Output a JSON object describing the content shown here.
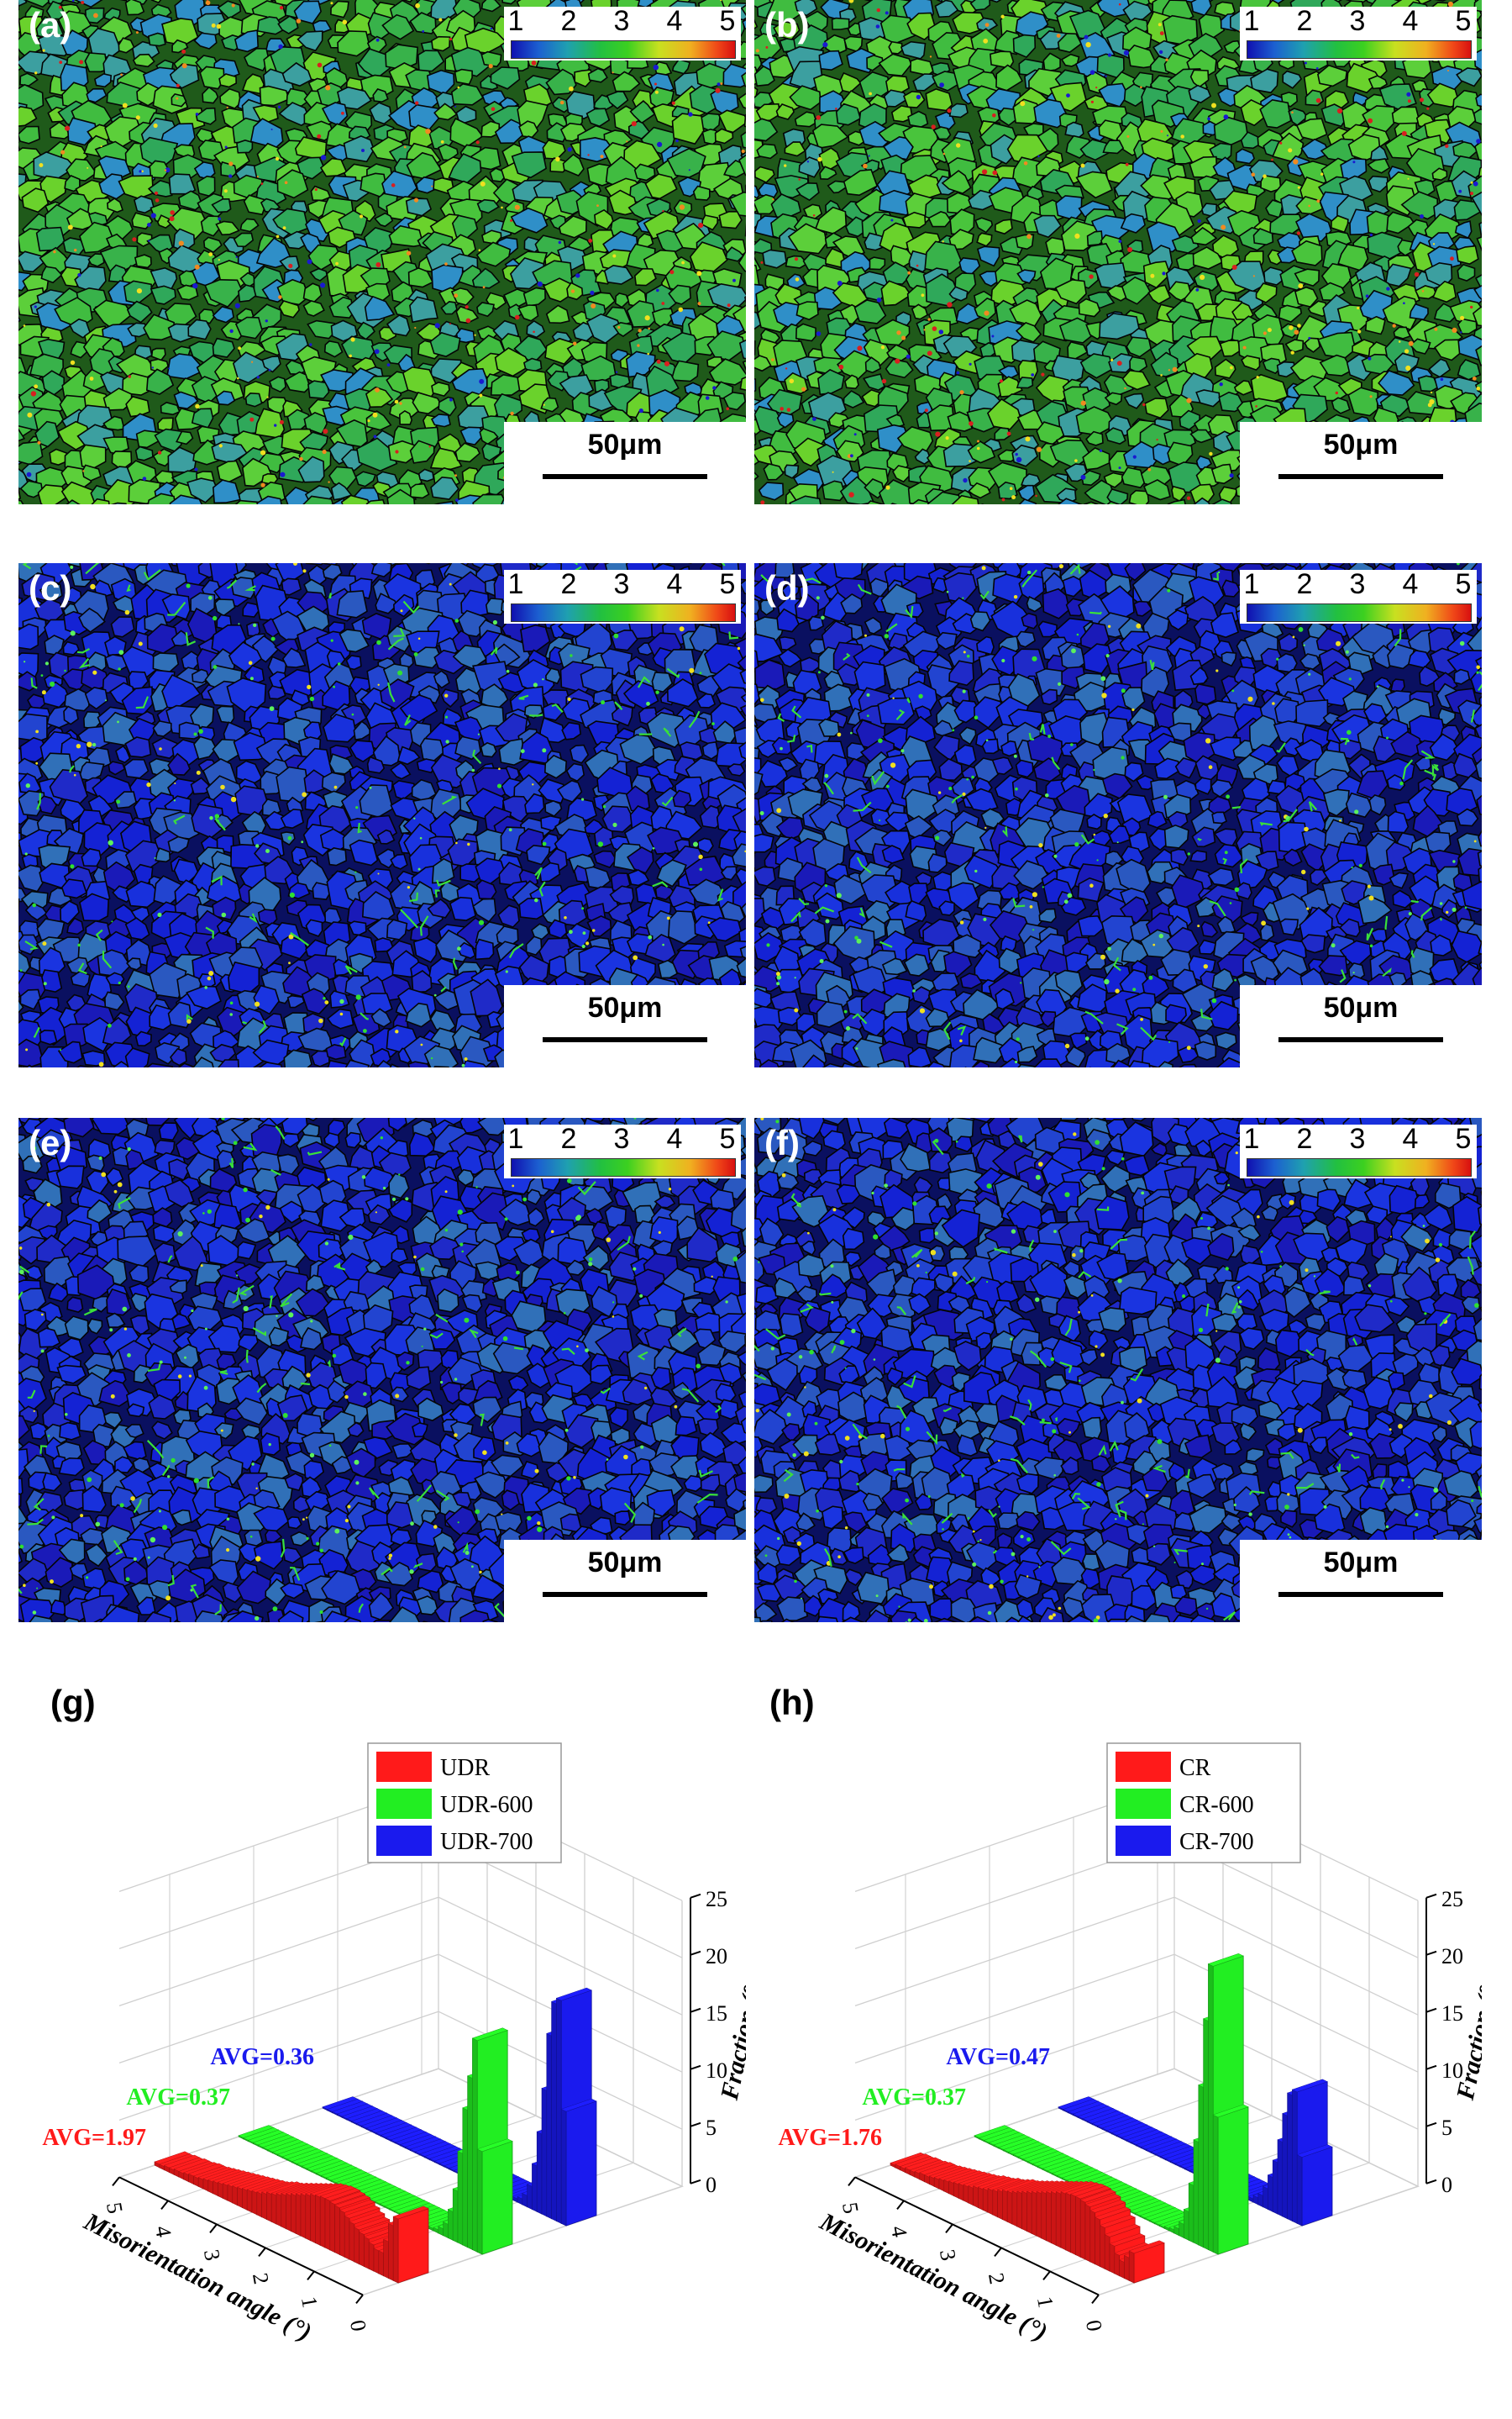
{
  "panels": [
    {
      "label": "(a)",
      "theme": "green",
      "colorbar": [
        "1",
        "2",
        "3",
        "4",
        "5"
      ],
      "scale": "50μm"
    },
    {
      "label": "(b)",
      "theme": "green",
      "colorbar": [
        "1",
        "2",
        "3",
        "4",
        "5"
      ],
      "scale": "50μm"
    },
    {
      "label": "(c)",
      "theme": "blue",
      "colorbar": [
        "1",
        "2",
        "3",
        "4",
        "5"
      ],
      "scale": "50μm"
    },
    {
      "label": "(d)",
      "theme": "blue",
      "colorbar": [
        "1",
        "2",
        "3",
        "4",
        "5"
      ],
      "scale": "50μm"
    },
    {
      "label": "(e)",
      "theme": "blue",
      "colorbar": [
        "1",
        "2",
        "3",
        "4",
        "5"
      ],
      "scale": "50μm"
    },
    {
      "label": "(f)",
      "theme": "blue",
      "colorbar": [
        "1",
        "2",
        "3",
        "4",
        "5"
      ],
      "scale": "50μm"
    }
  ],
  "chart_data": [
    {
      "panel": "(g)",
      "type": "bar",
      "xlabel": "Misorientation angle (°)",
      "zlabel": "Fraction (%)",
      "x_ticks": [
        "0",
        "1",
        "2",
        "3",
        "4",
        "5"
      ],
      "z_ticks": [
        "0",
        "5",
        "10",
        "15",
        "20",
        "25"
      ],
      "xlim": [
        0,
        5
      ],
      "zlim": [
        0,
        25
      ],
      "series": [
        {
          "name": "UDR",
          "color": "#ff1a1a",
          "avg": "AVG=1.97",
          "values": [
            5.6,
            4.8,
            3.2,
            2.0,
            2.0,
            2.3,
            2.6,
            2.8,
            3.0,
            3.3,
            3.6,
            3.9,
            4.1,
            4.2,
            4.3,
            4.3,
            4.2,
            4.1,
            3.9,
            3.7,
            3.5,
            3.3,
            3.1,
            2.9,
            2.7,
            2.5,
            2.4,
            2.2,
            2.0,
            1.9,
            1.8,
            1.7,
            1.6,
            1.5,
            1.4,
            1.3,
            1.2,
            1.1,
            1.0,
            0.9,
            0.8,
            0.7,
            0.7,
            0.6,
            0.5,
            0.5,
            0.4,
            0.4,
            0.3,
            0.3
          ]
        },
        {
          "name": "UDR-600",
          "color": "#22ee22",
          "avg": "AVG=0.37",
          "values": [
            9.0,
            18.5,
            15.0,
            12.0,
            8.0,
            4.5,
            2.5,
            1.2,
            0.6,
            0.3,
            0.2,
            0.1,
            0.1,
            0.1,
            0.1,
            0.1,
            0.1,
            0.1,
            0.1,
            0.1,
            0.1,
            0.1,
            0.1,
            0.1,
            0.1,
            0.1,
            0.1,
            0.1,
            0.1,
            0.1,
            0.1,
            0.1,
            0.1,
            0.1,
            0.1,
            0.1,
            0.1,
            0.1,
            0.1,
            0.1,
            0.1,
            0.1,
            0.1,
            0.1,
            0.1,
            0.1,
            0.1,
            0.1,
            0.1,
            0.1
          ]
        },
        {
          "name": "UDR-700",
          "color": "#1a1aee",
          "avg": "AVG=0.36",
          "values": [
            10.0,
            19.5,
            19.0,
            16.0,
            11.0,
            7.0,
            4.0,
            2.0,
            1.0,
            0.5,
            0.3,
            0.2,
            0.1,
            0.1,
            0.1,
            0.1,
            0.1,
            0.1,
            0.1,
            0.1,
            0.1,
            0.1,
            0.1,
            0.1,
            0.1,
            0.1,
            0.1,
            0.1,
            0.1,
            0.1,
            0.1,
            0.1,
            0.1,
            0.1,
            0.1,
            0.1,
            0.1,
            0.1,
            0.1,
            0.1,
            0.1,
            0.1,
            0.1,
            0.1,
            0.1,
            0.1,
            0.1,
            0.1,
            0.1,
            0.1
          ]
        }
      ]
    },
    {
      "panel": "(h)",
      "type": "bar",
      "xlabel": "Misorientation angle (°)",
      "zlabel": "Fraction (%)",
      "x_ticks": [
        "0",
        "1",
        "2",
        "3",
        "4",
        "5"
      ],
      "z_ticks": [
        "0",
        "5",
        "10",
        "15",
        "20",
        "25"
      ],
      "xlim": [
        0,
        5
      ],
      "zlim": [
        0,
        25
      ],
      "series": [
        {
          "name": "CR",
          "color": "#ff1a1a",
          "avg": "AVG=1.76",
          "values": [
            2.6,
            2.0,
            1.4,
            1.8,
            2.4,
            3.0,
            3.6,
            4.1,
            4.5,
            4.8,
            5.0,
            5.1,
            5.1,
            5.0,
            4.9,
            4.7,
            4.5,
            4.3,
            4.1,
            3.9,
            3.7,
            3.5,
            3.3,
            3.1,
            2.9,
            2.7,
            2.6,
            2.4,
            2.2,
            2.1,
            1.9,
            1.8,
            1.7,
            1.5,
            1.4,
            1.3,
            1.2,
            1.1,
            1.0,
            0.9,
            0.8,
            0.7,
            0.6,
            0.6,
            0.5,
            0.4,
            0.4,
            0.3,
            0.3,
            0.2
          ]
        },
        {
          "name": "CR-600",
          "color": "#22ee22",
          "avg": "AVG=0.37",
          "values": [
            12.0,
            25.0,
            20.0,
            14.0,
            9.0,
            5.0,
            2.5,
            1.2,
            0.6,
            0.3,
            0.2,
            0.1,
            0.1,
            0.1,
            0.1,
            0.1,
            0.1,
            0.1,
            0.1,
            0.1,
            0.1,
            0.1,
            0.1,
            0.1,
            0.1,
            0.1,
            0.1,
            0.1,
            0.1,
            0.1,
            0.1,
            0.1,
            0.1,
            0.1,
            0.1,
            0.1,
            0.1,
            0.1,
            0.1,
            0.1,
            0.1,
            0.1,
            0.1,
            0.1,
            0.1,
            0.1,
            0.1,
            0.1,
            0.1,
            0.1
          ]
        },
        {
          "name": "CR-700",
          "color": "#1a1aee",
          "avg": "AVG=0.47",
          "values": [
            6.0,
            11.5,
            11.0,
            9.0,
            6.5,
            4.5,
            3.0,
            1.8,
            1.0,
            0.6,
            0.3,
            0.2,
            0.1,
            0.1,
            0.1,
            0.1,
            0.1,
            0.1,
            0.1,
            0.1,
            0.1,
            0.1,
            0.1,
            0.1,
            0.1,
            0.1,
            0.1,
            0.1,
            0.1,
            0.1,
            0.1,
            0.1,
            0.1,
            0.1,
            0.1,
            0.1,
            0.1,
            0.1,
            0.1,
            0.1,
            0.1,
            0.1,
            0.1,
            0.1,
            0.1,
            0.1,
            0.1,
            0.1,
            0.1,
            0.1
          ]
        }
      ]
    }
  ]
}
